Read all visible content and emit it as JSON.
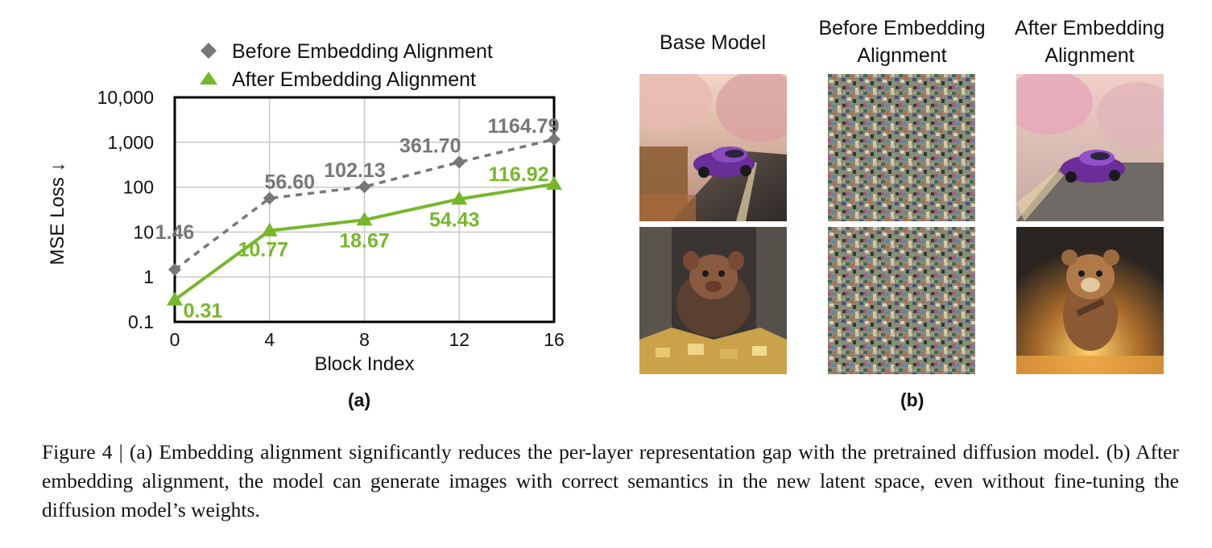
{
  "chart_data": {
    "type": "line",
    "xlabel": "Block Index",
    "ylabel": "MSE Loss ↓",
    "x": [
      0,
      4,
      8,
      12,
      16
    ],
    "xticks": [
      "0",
      "4",
      "8",
      "12",
      "16"
    ],
    "yscale": "log",
    "ylim": [
      0.1,
      10000
    ],
    "yticks": [
      "0.1",
      "1",
      "10",
      "100",
      "1,000",
      "10,000"
    ],
    "grid": true,
    "legend": "top",
    "series": [
      {
        "name": "Before Embedding Alignment",
        "values": [
          1.46,
          56.6,
          102.13,
          361.7,
          1164.79
        ],
        "labels": [
          "1.46",
          "56.60",
          "102.13",
          "361.70",
          "1164.79"
        ],
        "color": "#777777",
        "marker": "diamond",
        "line": "dashed"
      },
      {
        "name": "After Embedding Alignment",
        "values": [
          0.31,
          10.77,
          18.67,
          54.43,
          116.92
        ],
        "labels": [
          "0.31",
          "10.77",
          "18.67",
          "54.43",
          "116.92"
        ],
        "color": "#76b82a",
        "marker": "triangle",
        "line": "solid"
      }
    ]
  },
  "panel_a_label": "(a)",
  "panel_b_label": "(b)",
  "gallery": {
    "columns": [
      {
        "title": "Base Model"
      },
      {
        "title": "Before Embedding Alignment"
      },
      {
        "title": "After Embedding Alignment"
      }
    ],
    "rows": [
      "sports-car-on-road",
      "creature-on-gold"
    ]
  },
  "caption": "Figure 4 | (a) Embedding alignment significantly reduces the per-layer representation gap with the pretrained diffusion model. (b) After embedding alignment, the model can generate images with correct semantics in the new latent space, even without fine-tuning the diffusion model’s weights."
}
